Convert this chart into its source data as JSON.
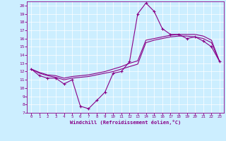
{
  "xlabel": "Windchill (Refroidissement éolien,°C)",
  "bg_color": "#cceeff",
  "line_color": "#880088",
  "xlim": [
    -0.5,
    23.5
  ],
  "ylim": [
    7,
    20.5
  ],
  "xticks": [
    0,
    1,
    2,
    3,
    4,
    5,
    6,
    7,
    8,
    9,
    10,
    11,
    12,
    13,
    14,
    15,
    16,
    17,
    18,
    19,
    20,
    21,
    22,
    23
  ],
  "yticks": [
    7,
    8,
    9,
    10,
    11,
    12,
    13,
    14,
    15,
    16,
    17,
    18,
    19,
    20
  ],
  "series1_x": [
    0,
    1,
    2,
    3,
    4,
    5,
    6,
    7,
    8,
    9,
    10,
    11,
    12,
    13,
    14,
    15,
    16,
    17,
    18,
    19,
    20,
    21,
    22,
    23
  ],
  "series1_y": [
    12.3,
    11.5,
    11.2,
    11.2,
    10.5,
    11.0,
    7.8,
    7.5,
    8.5,
    9.5,
    11.8,
    12.0,
    13.2,
    19.0,
    20.3,
    19.3,
    17.2,
    16.5,
    16.5,
    16.0,
    16.2,
    15.7,
    15.0,
    13.2
  ],
  "series2_x": [
    0,
    1,
    2,
    3,
    4,
    5,
    6,
    7,
    8,
    9,
    10,
    11,
    12,
    13,
    14,
    15,
    16,
    17,
    18,
    19,
    20,
    21,
    22,
    23
  ],
  "series2_y": [
    12.3,
    11.8,
    11.5,
    11.3,
    11.0,
    11.2,
    11.3,
    11.4,
    11.6,
    11.8,
    12.0,
    12.3,
    12.6,
    12.9,
    15.5,
    15.8,
    16.0,
    16.2,
    16.3,
    16.3,
    16.2,
    16.0,
    15.5,
    13.2
  ],
  "series3_x": [
    0,
    1,
    2,
    3,
    4,
    5,
    6,
    7,
    8,
    9,
    10,
    11,
    12,
    13,
    14,
    15,
    16,
    17,
    18,
    19,
    20,
    21,
    22,
    23
  ],
  "series3_y": [
    12.3,
    11.9,
    11.6,
    11.5,
    11.2,
    11.4,
    11.5,
    11.6,
    11.8,
    12.0,
    12.3,
    12.6,
    13.0,
    13.3,
    15.8,
    16.0,
    16.2,
    16.4,
    16.5,
    16.5,
    16.5,
    16.3,
    15.8,
    13.2
  ]
}
